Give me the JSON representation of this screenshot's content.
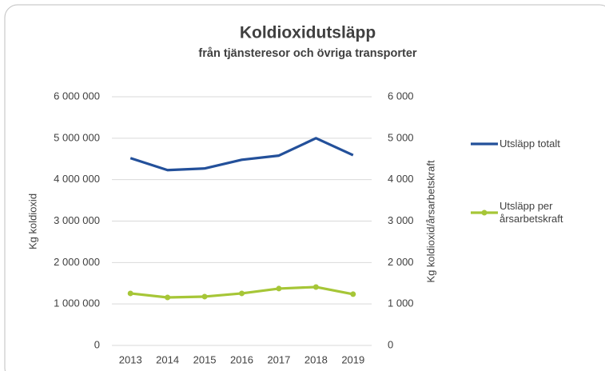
{
  "chart_data": {
    "type": "line",
    "title": "Koldioxidutsläpp",
    "subtitle": "från tjänsteresor och övriga transporter",
    "y_label": "Kg koldioxid",
    "y2_label": "Kg koldioxid/årsarbetskraft",
    "categories": [
      "2013",
      "2014",
      "2015",
      "2016",
      "2017",
      "2018",
      "2019"
    ],
    "series": [
      {
        "name": "Utsläpp totalt",
        "color": "#23509a",
        "values": [
          4520000,
          4230000,
          4270000,
          4480000,
          4580000,
          5000000,
          4590000
        ]
      },
      {
        "name": "Utsläpp per årsarbetskraft",
        "color": "#a6c637",
        "axis": "y2",
        "markers": true,
        "values": [
          1255,
          1158,
          1178,
          1255,
          1371,
          1409,
          1236
        ]
      }
    ],
    "ylim": [
      0,
      6000000
    ],
    "yticks": [
      0,
      {
        "value": 1000000,
        "label": "1 000 000"
      },
      {
        "value": 2000000,
        "label": "2 000 000"
      },
      {
        "value": 3000000,
        "label": "3 000 000"
      },
      {
        "value": 4000000,
        "label": "4 000 000"
      },
      {
        "value": 5000000,
        "label": "5 000 000"
      },
      {
        "value": 6000000,
        "label": "6 000 000"
      }
    ],
    "y2lim": [
      0,
      6000
    ],
    "y2ticks": [
      0,
      {
        "value": 1000,
        "label": "1 000"
      },
      {
        "value": 2000,
        "label": "2 000"
      },
      {
        "value": 3000,
        "label": "3 000"
      },
      {
        "value": 4000,
        "label": "4 000"
      },
      {
        "value": 5000,
        "label": "5 000"
      },
      {
        "value": 6000,
        "label": "6 000"
      }
    ],
    "grid": true,
    "legend": "right"
  }
}
